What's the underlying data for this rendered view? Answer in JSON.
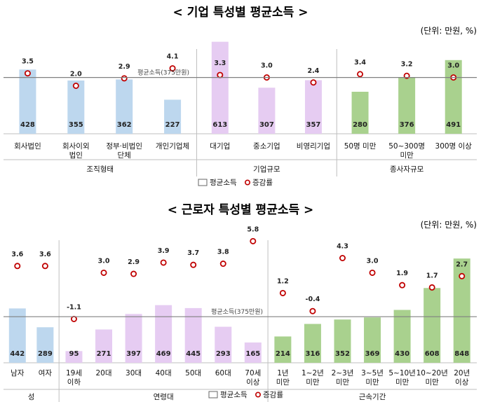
{
  "page": {
    "title1": "< 기업 특성별 평균소득 >",
    "title2": "< 근로자 특성별 평균소득 >",
    "unit1": "(단위: 만원, %)",
    "unit2": "(단위: 만원, %)"
  },
  "legend": {
    "bar": "평균소득",
    "marker": "증감률"
  },
  "colors": {
    "blue": "#bdd7ee",
    "purple": "#e6ccf2",
    "green": "#a9d18e",
    "marker": "#c00000",
    "avg_line": "#808080"
  },
  "chart_data": [
    {
      "type": "bar",
      "title": "< 기업 특성별 평균소득 >",
      "unit": "(단위: 만원, %)",
      "average_line": {
        "label": "평균소득(375만원)",
        "value": 375
      },
      "ylim": [
        0,
        700
      ],
      "rate_ylim": [
        -2,
        6
      ],
      "groups": [
        {
          "name": "조직형태",
          "color": "blue",
          "categories": [
            "회사법인",
            "회사이외\n법인",
            "정부·비법인\n단체",
            "개인기업체"
          ],
          "values": [
            428,
            355,
            362,
            227
          ],
          "rates": [
            3.5,
            2.0,
            2.9,
            4.1
          ]
        },
        {
          "name": "기업규모",
          "color": "purple",
          "categories": [
            "대기업",
            "중소기업",
            "비영리기업"
          ],
          "values": [
            613,
            307,
            357
          ],
          "rates": [
            3.3,
            3.0,
            2.4
          ]
        },
        {
          "name": "종사자규모",
          "color": "green",
          "categories": [
            "50명 미만",
            "50~300명\n미만",
            "300명 이상"
          ],
          "values": [
            280,
            376,
            491
          ],
          "rates": [
            3.4,
            3.2,
            3.0
          ]
        }
      ]
    },
    {
      "type": "bar",
      "title": "< 근로자 특성별 평균소득 >",
      "unit": "(단위: 만원, %)",
      "average_line": {
        "label": "평균소득(375만원)",
        "value": 375
      },
      "ylim": [
        0,
        900
      ],
      "rate_ylim": [
        -2,
        7
      ],
      "groups": [
        {
          "name": "성",
          "color": "blue",
          "categories": [
            "남자",
            "여자"
          ],
          "values": [
            442,
            289
          ],
          "rates": [
            3.6,
            3.6
          ]
        },
        {
          "name": "연령대",
          "color": "purple",
          "categories": [
            "19세\n이하",
            "20대",
            "30대",
            "40대",
            "50대",
            "60대",
            "70세\n이상"
          ],
          "values": [
            95,
            271,
            397,
            469,
            445,
            293,
            165
          ],
          "rates": [
            -1.1,
            3.0,
            2.9,
            3.9,
            3.7,
            3.8,
            5.8
          ]
        },
        {
          "name": "근속기간",
          "color": "green",
          "categories": [
            "1년\n미만",
            "1~2년\n미만",
            "2~3년\n미만",
            "3~5년\n미만",
            "5~10년\n미만",
            "10~20년\n미만",
            "20년\n이상"
          ],
          "values": [
            214,
            316,
            352,
            369,
            430,
            608,
            848
          ],
          "rates": [
            1.2,
            -0.4,
            4.3,
            3.0,
            1.9,
            1.7,
            2.7
          ]
        }
      ]
    }
  ]
}
